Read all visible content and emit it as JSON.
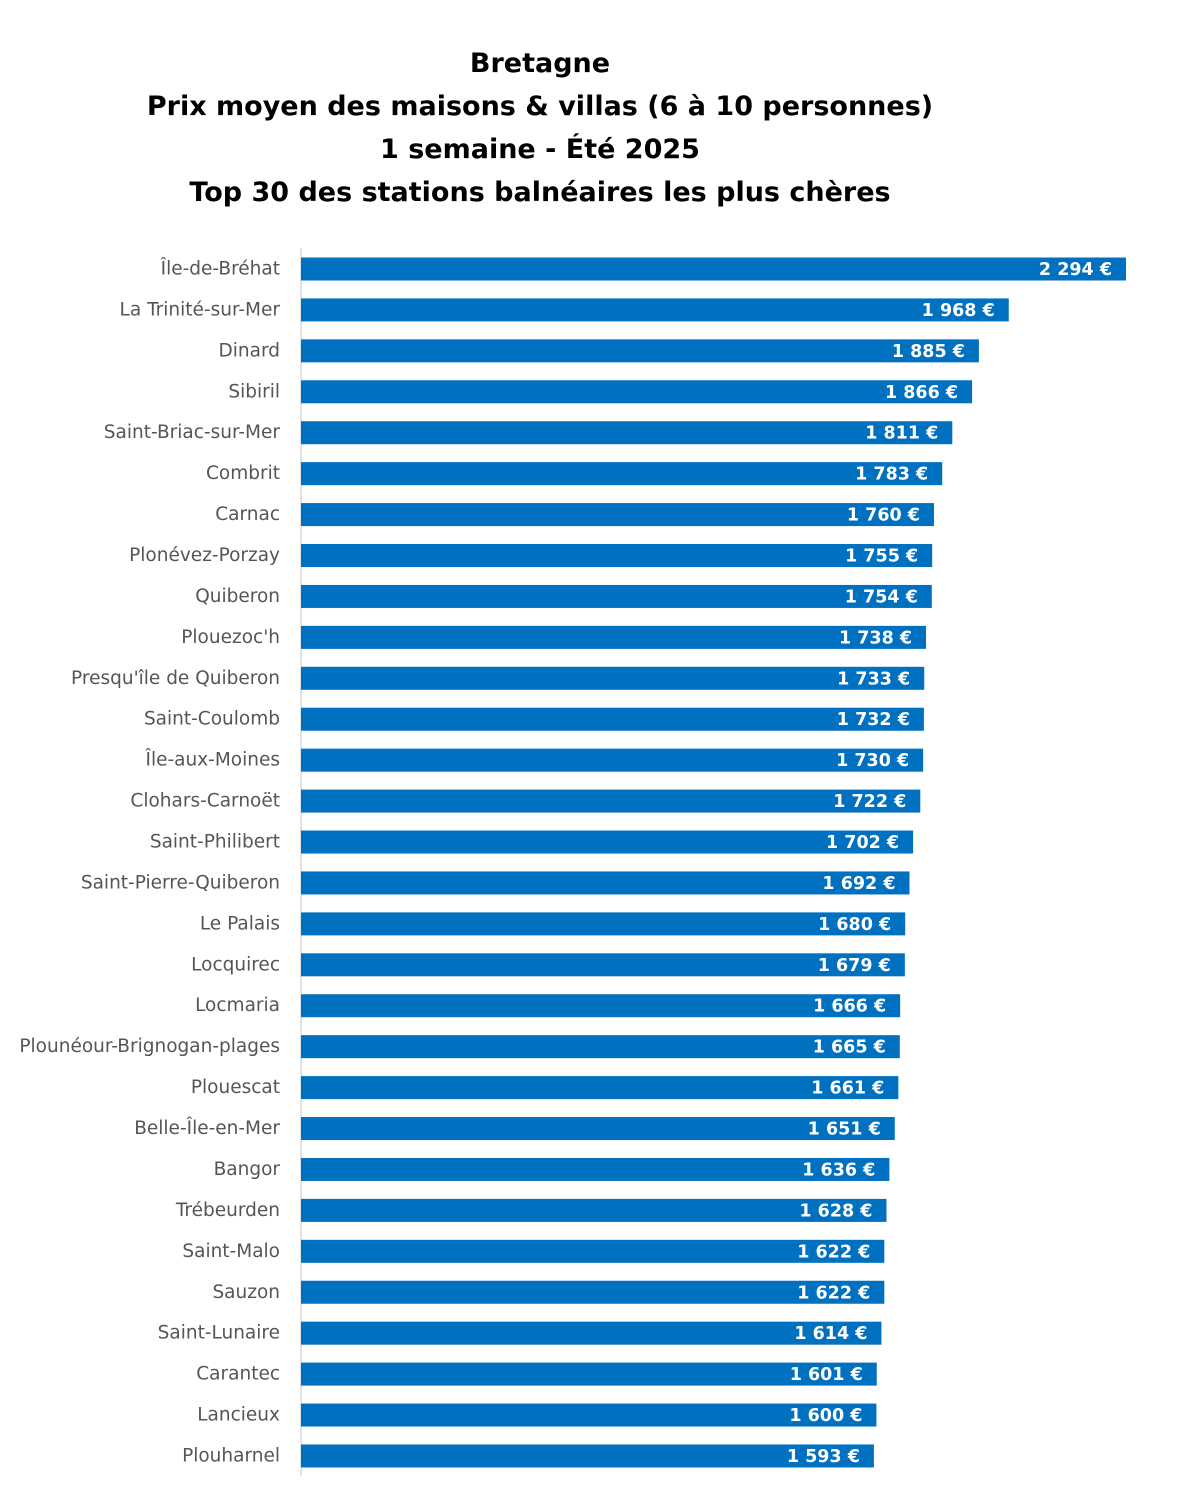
{
  "chart_data": {
    "type": "bar",
    "orientation": "horizontal",
    "title": [
      "Bretagne",
      "Prix moyen des maisons & villas (6 à 10 personnes)",
      "1 semaine - Été 2025",
      "Top 30 des stations balnéaires les plus chères"
    ],
    "xlabel": "",
    "ylabel": "",
    "xlim": [
      0,
      2294
    ],
    "grid": false,
    "bar_color": "#0070C0",
    "categories": [
      "Île-de-Bréhat",
      "La Trinité-sur-Mer",
      "Dinard",
      "Sibiril",
      "Saint-Briac-sur-Mer",
      "Combrit",
      "Carnac",
      "Plonévez-Porzay",
      "Quiberon",
      "Plouezoc'h",
      "Presqu'île de Quiberon",
      "Saint-Coulomb",
      "Île-aux-Moines",
      "Clohars-Carnoët",
      "Saint-Philibert",
      "Saint-Pierre-Quiberon",
      "Le Palais",
      "Locquirec",
      "Locmaria",
      "Plounéour-Brignogan-plages",
      "Plouescat",
      "Belle-Île-en-Mer",
      "Bangor",
      "Trébeurden",
      "Saint-Malo",
      "Sauzon",
      "Saint-Lunaire",
      "Carantec",
      "Lancieux",
      "Plouharnel"
    ],
    "values": [
      2294,
      1968,
      1885,
      1866,
      1811,
      1783,
      1760,
      1755,
      1754,
      1738,
      1733,
      1732,
      1730,
      1722,
      1702,
      1692,
      1680,
      1679,
      1666,
      1665,
      1661,
      1651,
      1636,
      1628,
      1622,
      1622,
      1614,
      1601,
      1600,
      1593
    ],
    "data_labels": [
      "2 294 €",
      "1 968 €",
      "1 885 €",
      "1 866 €",
      "1 811 €",
      "1 783 €",
      "1 760 €",
      "1 755 €",
      "1 754 €",
      "1 738 €",
      "1 733 €",
      "1 732 €",
      "1 730 €",
      "1 722 €",
      "1 702 €",
      "1 692 €",
      "1 680 €",
      "1 679 €",
      "1 666 €",
      "1 665 €",
      "1 661 €",
      "1 651 €",
      "1 636 €",
      "1 628 €",
      "1 622 €",
      "1 622 €",
      "1 614 €",
      "1 601 €",
      "1 600 €",
      "1 593 €"
    ]
  }
}
